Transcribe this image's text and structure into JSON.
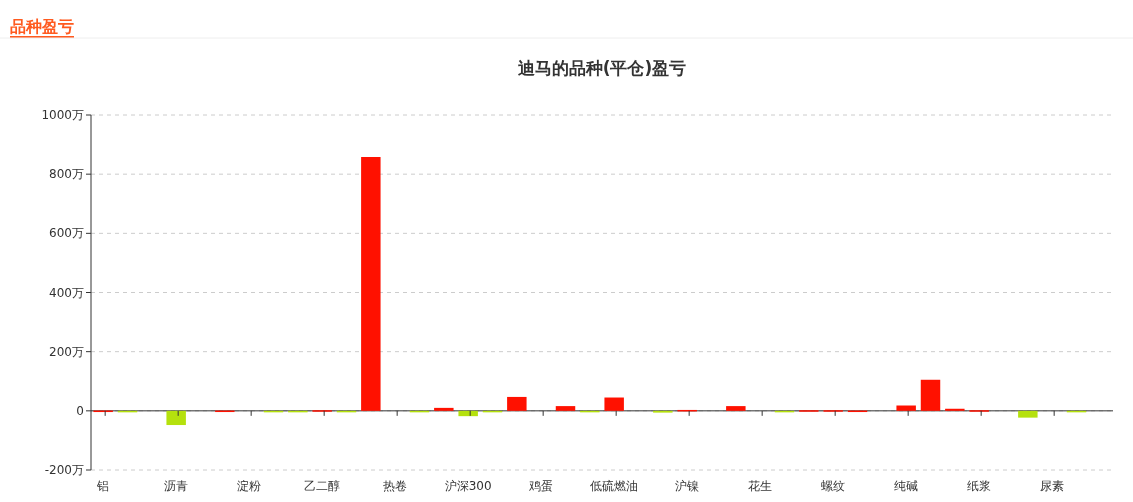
{
  "chart_data": {
    "type": "bar",
    "title": "迪马的品种(平仓)盈亏",
    "annotations": [
      "品种盈亏"
    ],
    "categories": [
      "铝",
      null,
      null,
      "沥青",
      null,
      null,
      "淀粉",
      null,
      null,
      "乙二醇",
      null,
      null,
      "热卷",
      null,
      null,
      "沪深300",
      null,
      null,
      "鸡蛋",
      null,
      null,
      "低硫燃油",
      null,
      null,
      "沪镍",
      null,
      null,
      "花生",
      null,
      null,
      "螺纹",
      null,
      null,
      "纯碱",
      null,
      null,
      "纸浆",
      null,
      null,
      "尿素",
      null,
      null
    ],
    "values": [
      1,
      -5,
      0,
      -48,
      0,
      1,
      0,
      -1,
      -3,
      2,
      -1,
      858,
      0,
      -1,
      10,
      -18,
      -1,
      47,
      0,
      16,
      -4,
      45,
      0,
      -6,
      3,
      0,
      16,
      0,
      -5,
      2,
      2,
      1,
      0,
      18,
      105,
      7,
      2,
      0,
      -23,
      0,
      -2,
      0
    ],
    "colors": [
      "#ff1100",
      "#b5e10d",
      "#ff1100",
      "#b5e10d",
      "#ff1100",
      "#ff1100",
      "#ff1100",
      "#b5e10d",
      "#b5e10d",
      "#ff1100",
      "#b5e10d",
      "#ff1100",
      "#ff1100",
      "#b5e10d",
      "#ff1100",
      "#b5e10d",
      "#b5e10d",
      "#ff1100",
      "#ff1100",
      "#ff1100",
      "#b5e10d",
      "#ff1100",
      "#ff1100",
      "#b5e10d",
      "#ff1100",
      "#ff1100",
      "#ff1100",
      "#ff1100",
      "#b5e10d",
      "#ff1100",
      "#ff1100",
      "#ff1100",
      "#ff1100",
      "#ff1100",
      "#ff1100",
      "#ff1100",
      "#ff1100",
      "#ff1100",
      "#b5e10d",
      "#ff1100",
      "#b5e10d",
      "#ff1100"
    ],
    "ylim": [
      -200,
      1000
    ],
    "yticks": [
      {
        "value": -200,
        "label": "-200万"
      },
      {
        "value": 0,
        "label": "0"
      },
      {
        "value": 200,
        "label": "200万"
      },
      {
        "value": 400,
        "label": "400万"
      },
      {
        "value": 600,
        "label": "600万"
      },
      {
        "value": 800,
        "label": "800万"
      },
      {
        "value": 1000,
        "label": "1000万"
      }
    ],
    "grid": "y"
  }
}
